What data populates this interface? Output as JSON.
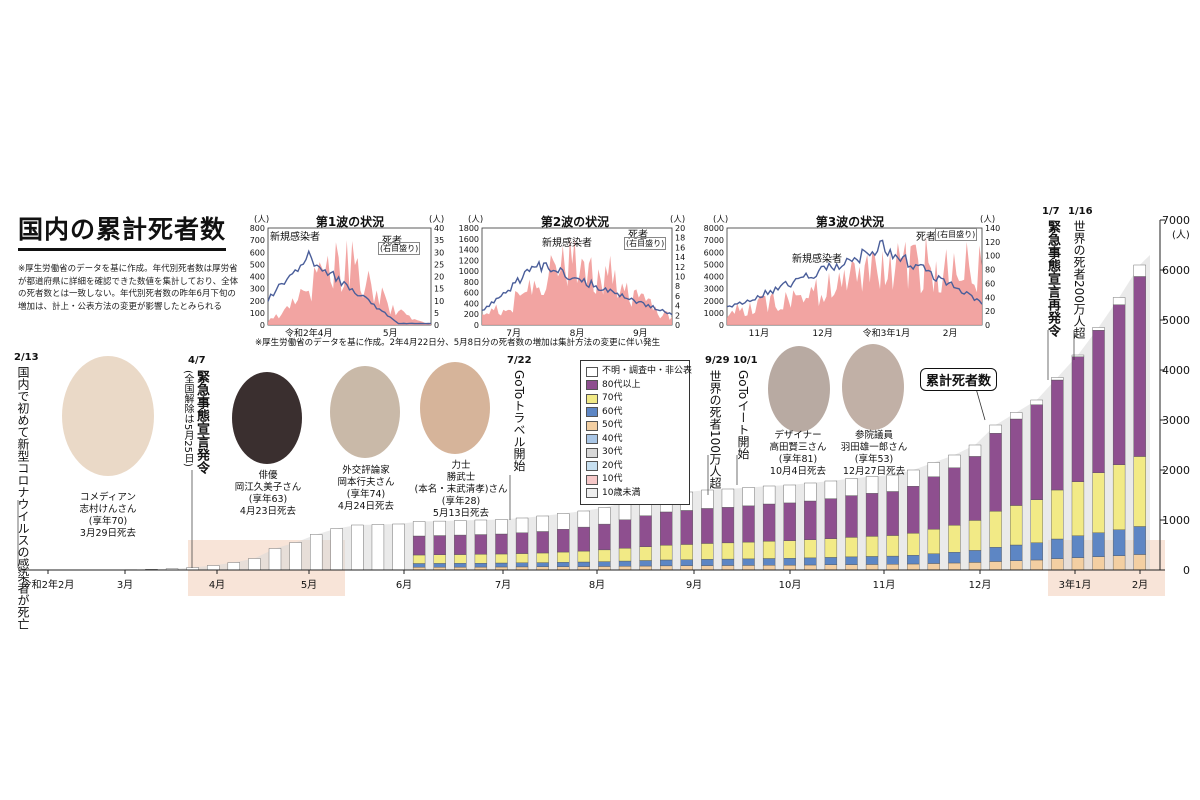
{
  "title": "国内の累計死者数",
  "note": "※厚生労働省のデータを基に作成。年代別死者数は厚労省が都道府県に詳細を確認できた数値を集計しており、全体の死者数とは一致しない。年代別死者数の昨年6月下旬の増加は、計上・公表方法の変更が影響したとみられる",
  "wave_note": "※厚生労働省のデータを基に作成。2年4月22日分、5月8日分の死者数の増加は集計方法の変更に伴い発生",
  "colors": {
    "unknown": "#ffffff",
    "80plus": "#8e4f8f",
    "70s": "#f2ea86",
    "60s": "#5d86c4",
    "50s": "#f3cfa2",
    "40s": "#a9c6e6",
    "30s": "#d8d8d8",
    "20s": "#c7e0f1",
    "10s": "#f6c8c8",
    "under10": "#eeeeee",
    "wave_area": "#f19a98",
    "wave_line": "#4a5e9a",
    "shade": "#f8e4d8"
  },
  "waves": [
    {
      "title": "第1波の状況",
      "unit_left": "(人)",
      "unit_right": "(人)",
      "left_ticks": [
        "800",
        "700",
        "600",
        "500",
        "400",
        "300",
        "200",
        "100",
        "0"
      ],
      "right_ticks": [
        "40",
        "35",
        "30",
        "25",
        "20",
        "15",
        "10",
        "5",
        "0"
      ],
      "x_labels": [
        "令和2年4月",
        "5月"
      ],
      "new_label": "新規感染者",
      "death_label": "死者",
      "death_note": "(右目盛り)"
    },
    {
      "title": "第2波の状況",
      "unit_left": "(人)",
      "unit_right": "(人)",
      "left_ticks": [
        "1800",
        "1600",
        "1400",
        "1200",
        "1000",
        "800",
        "600",
        "400",
        "200",
        "0"
      ],
      "right_ticks": [
        "20",
        "18",
        "16",
        "14",
        "12",
        "10",
        "8",
        "6",
        "4",
        "2",
        "0"
      ],
      "x_labels": [
        "7月",
        "8月",
        "9月"
      ],
      "new_label": "新規感染者",
      "death_label": "死者",
      "death_note": "(右目盛り)"
    },
    {
      "title": "第3波の状況",
      "unit_left": "(人)",
      "unit_right": "(人)",
      "left_ticks": [
        "8000",
        "7000",
        "6000",
        "5000",
        "4000",
        "3000",
        "2000",
        "1000",
        "0"
      ],
      "right_ticks": [
        "140",
        "120",
        "100",
        "80",
        "60",
        "40",
        "20",
        "0"
      ],
      "x_labels": [
        "11月",
        "12月",
        "令和3年1月",
        "2月"
      ],
      "new_label": "新規感染者",
      "death_label": "死者",
      "death_note": "(右目盛り)"
    }
  ],
  "legend": {
    "items": [
      {
        "label": "不明・調査中・非公表",
        "color": "#ffffff"
      },
      {
        "label": "80代以上",
        "color": "#8e4f8f"
      },
      {
        "label": "70代",
        "color": "#f2ea86"
      },
      {
        "label": "60代",
        "color": "#5d86c4"
      },
      {
        "label": "50代",
        "color": "#f3cfa2"
      },
      {
        "label": "40代",
        "color": "#a9c6e6"
      },
      {
        "label": "30代",
        "color": "#d8d8d8"
      },
      {
        "label": "20代",
        "color": "#c7e0f1"
      },
      {
        "label": "10代",
        "color": "#f6c8c8"
      },
      {
        "label": "10歳未満",
        "color": "#eeeeee"
      }
    ]
  },
  "total_label": "累計死者数",
  "y_unit": "(人)",
  "events": [
    {
      "date": "2/13",
      "text": "国内で初めて新型コロナウイルスの感染者が死亡"
    },
    {
      "date": "4/7",
      "text": "緊急事態宣言発令",
      "sub": "(全国解除は5月25日)"
    },
    {
      "date": "7/22",
      "text": "GoToトラベル開始"
    },
    {
      "date": "9/29",
      "text": "世界の死者100万人超"
    },
    {
      "date": "10/1",
      "text": "GoToイート開始"
    },
    {
      "date": "1/7",
      "text": "緊急事態宣言再発令"
    },
    {
      "date": "1/16",
      "text": "世界の死者200万人超"
    }
  ],
  "persons": [
    {
      "role": "コメディアン",
      "name": "志村けんさん",
      "age": "(享年70)",
      "date": "3月29日死去"
    },
    {
      "role": "俳優",
      "name": "岡江久美子さん",
      "age": "(享年63)",
      "date": "4月23日死去"
    },
    {
      "role": "外交評論家",
      "name": "岡本行夫さん",
      "age": "(享年74)",
      "date": "4月24日死去"
    },
    {
      "role": "力士",
      "name": "勝武士",
      "extra": "(本名・末武清孝)さん",
      "age": "(享年28)",
      "date": "5月13日死去"
    },
    {
      "role": "デザイナー",
      "name": "高田賢三さん",
      "age": "(享年81)",
      "date": "10月4日死去"
    },
    {
      "role": "参院議員",
      "name": "羽田雄一郎さん",
      "age": "(享年53)",
      "date": "12月27日死去"
    }
  ],
  "chart_data": {
    "type": "bar",
    "title": "国内の累計死者数",
    "ylabel": "(人)",
    "ylim": [
      0,
      7000
    ],
    "yticks": [
      0,
      1000,
      2000,
      3000,
      4000,
      5000,
      6000,
      7000
    ],
    "x_labels": [
      "令和2年2月",
      "3月",
      "4月",
      "5月",
      "6月",
      "7月",
      "8月",
      "9月",
      "10月",
      "11月",
      "12月",
      "3年1月",
      "2月"
    ],
    "totals": [
      4,
      7,
      15,
      25,
      50,
      90,
      150,
      230,
      430,
      550,
      710,
      830,
      900,
      910,
      920,
      970,
      978,
      990,
      1000,
      1010,
      1040,
      1080,
      1130,
      1180,
      1250,
      1350,
      1450,
      1530,
      1560,
      1600,
      1620,
      1650,
      1680,
      1700,
      1740,
      1780,
      1830,
      1870,
      1900,
      2000,
      2150,
      2300,
      2500,
      2900,
      3150,
      3400,
      3850,
      4300,
      4850,
      5450,
      6100
    ],
    "age_80plus": [
      0,
      0,
      0,
      0,
      0,
      0,
      0,
      0,
      0,
      0,
      0,
      0,
      0,
      0,
      0,
      380,
      385,
      390,
      395,
      400,
      415,
      430,
      455,
      480,
      515,
      570,
      620,
      665,
      680,
      700,
      710,
      725,
      745,
      755,
      775,
      800,
      835,
      860,
      880,
      940,
      1050,
      1150,
      1280,
      1560,
      1730,
      1900,
      2200,
      2500,
      2850,
      3200,
      3600
    ],
    "age_70s": [
      0,
      0,
      0,
      0,
      0,
      0,
      0,
      0,
      0,
      0,
      0,
      0,
      0,
      0,
      0,
      170,
      172,
      175,
      178,
      180,
      185,
      192,
      205,
      218,
      235,
      255,
      275,
      295,
      305,
      318,
      325,
      335,
      345,
      352,
      362,
      375,
      390,
      402,
      412,
      440,
      490,
      540,
      600,
      720,
      790,
      860,
      980,
      1080,
      1200,
      1300,
      1400
    ],
    "age_60s": [
      0,
      0,
      0,
      0,
      0,
      0,
      0,
      0,
      0,
      0,
      0,
      0,
      0,
      0,
      0,
      75,
      76,
      77,
      78,
      80,
      82,
      84,
      88,
      92,
      97,
      104,
      111,
      118,
      121,
      125,
      128,
      131,
      135,
      138,
      143,
      148,
      155,
      160,
      164,
      175,
      195,
      215,
      240,
      285,
      315,
      345,
      395,
      440,
      480,
      520,
      560
    ],
    "age_50_under": [
      0,
      0,
      0,
      0,
      0,
      0,
      0,
      0,
      0,
      0,
      0,
      0,
      0,
      0,
      0,
      55,
      56,
      57,
      58,
      60,
      62,
      64,
      66,
      68,
      71,
      75,
      79,
      83,
      85,
      88,
      90,
      92,
      95,
      97,
      100,
      104,
      108,
      111,
      114,
      120,
      130,
      140,
      152,
      170,
      185,
      200,
      225,
      245,
      265,
      285,
      310
    ],
    "age_unknown": [
      4,
      7,
      15,
      25,
      50,
      90,
      150,
      230,
      430,
      550,
      710,
      830,
      900,
      910,
      920,
      290,
      289,
      291,
      291,
      290,
      296,
      310,
      316,
      322,
      332,
      346,
      365,
      369,
      369,
      369,
      367,
      367,
      360,
      358,
      360,
      353,
      342,
      337,
      330,
      325,
      285,
      255,
      228,
      165,
      130,
      95,
      50,
      35,
      55,
      145,
      230
    ]
  }
}
